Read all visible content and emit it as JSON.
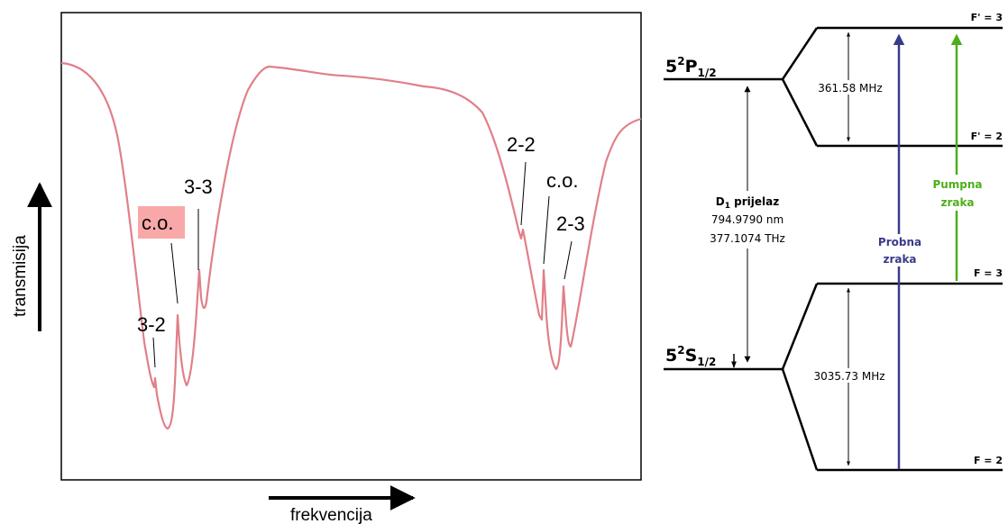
{
  "spectrum": {
    "axis_labels": {
      "x": "frekvencija",
      "y": "transmisija"
    },
    "peak_labels": {
      "p32": "3-2",
      "co_left": "c.o.",
      "p33": "3-3",
      "p22": "2-2",
      "co_right": "c.o.",
      "p23": "2-3"
    },
    "colors": {
      "trace": "#e08088",
      "highlight_box": "#f8a8a8"
    }
  },
  "levels": {
    "excited_state": {
      "base": "5",
      "sup": "2",
      "letter": "P",
      "sub": "1/2"
    },
    "ground_state": {
      "base": "5",
      "sup": "2",
      "letter": "S",
      "sub": "1/2"
    },
    "hyperfine": {
      "Fp3": "F' = 3",
      "Fp2": "F' = 2",
      "F3": "F = 3",
      "F2": "F = 2"
    },
    "splittings": {
      "excited": "361.58 MHz",
      "ground": "3035.73 MHz"
    },
    "transition": {
      "name_base": "D",
      "name_sub": "1",
      "name_rest": " prijelaz",
      "wavelength": "794.9790 nm",
      "frequency": "377.1074 THz"
    },
    "beams": {
      "probe_line1": "Probna",
      "probe_line2": "zraka",
      "pump_line1": "Pumpna",
      "pump_line2": "zraka"
    },
    "colors": {
      "probe": "#3a3a8c",
      "pump": "#4caf1a"
    }
  }
}
